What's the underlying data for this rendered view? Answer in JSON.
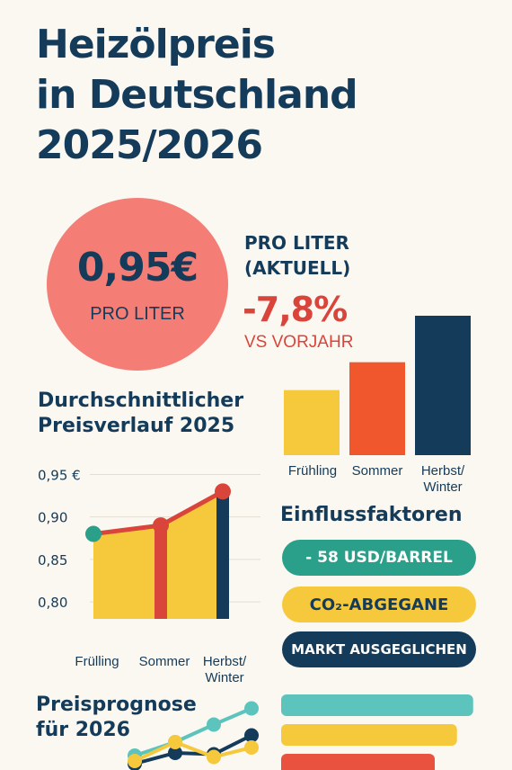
{
  "title": {
    "line1": "Heizölpreis",
    "line2": "in Deutschland",
    "line3": "2025/2026"
  },
  "price": {
    "value": "0,95€",
    "unit": "PRO LITER"
  },
  "stat": {
    "label_line1": "PRO LITER",
    "label_line2": "(AKTUELL)",
    "change": "-7,8%",
    "comparison": "VS VORJAHR"
  },
  "avg_title": {
    "line1": "Durchschnittlicher",
    "line2": "Preisverlauf 2025"
  },
  "factors": {
    "title": "Einflussfaktoren",
    "items": [
      {
        "label": "- 58 USD/BARREL",
        "color": "#2aa08a"
      },
      {
        "label": "CO₂-ABGEGANE",
        "color": "#f6c93c"
      },
      {
        "label": "MARKT AUSGEGLICHEN",
        "color": "#143b5a"
      }
    ]
  },
  "forecast_title": {
    "line1": "Preisprognose",
    "line2": "für 2026"
  },
  "colors": {
    "navy": "#143b5a",
    "coral": "#f47e76",
    "red": "#d9453a",
    "yellow": "#f6c93c",
    "orange": "#f0572d",
    "teal": "#2aa08a",
    "light_teal": "#5cc4bd"
  },
  "chart_data": [
    {
      "type": "bar",
      "categories": [
        "Frühling",
        "Sommer",
        "Herbst/Winter"
      ],
      "values": [
        0.89,
        0.92,
        0.97
      ],
      "colors": [
        "#f6c93c",
        "#f0572d",
        "#143b5a"
      ],
      "title": "",
      "xlabel": "",
      "ylabel": "",
      "ylim": [
        0.82,
        1.0
      ],
      "grid": false,
      "legend": "none"
    },
    {
      "type": "line",
      "title": "Durchschnittlicher Preisverlauf 2025",
      "categories": [
        "Frülling",
        "Sommer",
        "Herbst/Winter"
      ],
      "series": [
        {
          "values": [
            0.88,
            0.89,
            0.93
          ],
          "color": "#d9453a"
        }
      ],
      "bar_colors": [
        "#f6c93c",
        "#f6c93c",
        "#f6c93c"
      ],
      "marker_colors": [
        "#2aa08a",
        "#d9453a",
        "#d9453a"
      ],
      "yticks": [
        "0,95 €",
        "0,90",
        "0,85",
        "0,80"
      ],
      "ytick_values": [
        0.95,
        0.9,
        0.85,
        0.8
      ],
      "ylim": [
        0.78,
        0.96
      ],
      "grid": true,
      "legend": "none"
    },
    {
      "type": "line",
      "title": "Preisprognose für 2026",
      "series": [
        {
          "values": [
            1,
            2,
            3.3,
            4.5
          ],
          "color": "#5cc4bd"
        },
        {
          "values": [
            0.4,
            1.2,
            1.1,
            2.5
          ],
          "color": "#143b5a"
        },
        {
          "values": [
            0.6,
            2.0,
            0.9,
            1.6
          ],
          "color": "#f6c93c"
        }
      ],
      "bars": [
        {
          "value": 0.95,
          "color": "#5cc4bd"
        },
        {
          "value": 0.87,
          "color": "#f6c93c"
        },
        {
          "value": 0.76,
          "color": "#e8523f"
        }
      ],
      "grid": false,
      "legend": "none"
    }
  ]
}
